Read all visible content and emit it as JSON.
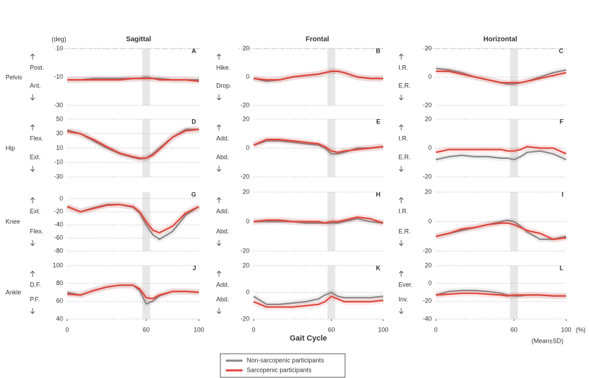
{
  "column_titles": [
    "Sagittal",
    "Frontal",
    "Horizontal"
  ],
  "row_labels": [
    "Pelvis",
    "Hip",
    "Knee",
    "Ankle"
  ],
  "unit_label": "(deg)",
  "x_label": "Gait Cycle",
  "x_unit": "(%)",
  "note": "(Mean±SD)",
  "stance_band": [
    57,
    63
  ],
  "chart_data": [
    {
      "type": "line",
      "title": "A",
      "upper_label": "Post.",
      "lower_label": "Ant.",
      "x": [
        0,
        10,
        20,
        30,
        40,
        50,
        55,
        60,
        65,
        70,
        80,
        90,
        100
      ],
      "xlim": [
        0,
        100
      ],
      "ylim": [
        -30,
        10
      ],
      "yticks": [
        10,
        -10,
        -30
      ],
      "grid": true,
      "series": [
        {
          "name": "Non-sarcopenic participants",
          "color": "#8a8a8a",
          "values": [
            -12,
            -12,
            -11,
            -11,
            -11,
            -11,
            -11,
            -10,
            -11,
            -11,
            -12,
            -12,
            -12
          ]
        },
        {
          "name": "Sarcopenic participants",
          "color": "#e0473c",
          "values": [
            -12,
            -12,
            -12,
            -12,
            -12,
            -11,
            -11,
            -11,
            -11,
            -12,
            -12,
            -12,
            -13
          ]
        }
      ]
    },
    {
      "type": "line",
      "title": "B",
      "upper_label": "Hike.",
      "lower_label": "Drop.",
      "x": [
        0,
        10,
        20,
        30,
        40,
        50,
        55,
        60,
        65,
        70,
        80,
        90,
        100
      ],
      "xlim": [
        0,
        100
      ],
      "ylim": [
        -20,
        20
      ],
      "yticks": [
        20,
        0,
        -20
      ],
      "grid": true,
      "series": [
        {
          "name": "Non-sarcopenic participants",
          "color": "#8a8a8a",
          "values": [
            -1,
            -3,
            -2,
            0,
            1,
            2,
            3,
            4,
            4,
            3,
            0,
            -1,
            -1
          ]
        },
        {
          "name": "Sarcopenic participants",
          "color": "#e0473c",
          "values": [
            -1,
            -2,
            -2,
            0,
            1,
            2,
            3,
            4,
            4,
            3,
            0,
            -1,
            -1
          ]
        }
      ]
    },
    {
      "type": "line",
      "title": "C",
      "upper_label": "I.R.",
      "lower_label": "E.R.",
      "x": [
        0,
        10,
        20,
        30,
        40,
        50,
        55,
        60,
        65,
        70,
        80,
        90,
        100
      ],
      "xlim": [
        0,
        100
      ],
      "ylim": [
        -20,
        20
      ],
      "yticks": [
        20,
        0,
        -20
      ],
      "grid": true,
      "series": [
        {
          "name": "Non-sarcopenic participants",
          "color": "#8a8a8a",
          "values": [
            6,
            5,
            3,
            0,
            -2,
            -4,
            -5,
            -5,
            -4,
            -3,
            0,
            3,
            5
          ]
        },
        {
          "name": "Sarcopenic participants",
          "color": "#e0473c",
          "values": [
            4,
            4,
            2,
            0,
            -2,
            -4,
            -4,
            -4,
            -4,
            -3,
            -1,
            1,
            3
          ]
        }
      ]
    },
    {
      "type": "line",
      "title": "D",
      "upper_label": "Flex.",
      "lower_label": "Ext.",
      "x": [
        0,
        10,
        20,
        30,
        40,
        50,
        55,
        60,
        65,
        70,
        80,
        90,
        100
      ],
      "xlim": [
        0,
        100
      ],
      "ylim": [
        -30,
        50
      ],
      "yticks": [
        50,
        30,
        10,
        -10,
        -30
      ],
      "grid": true,
      "series": [
        {
          "name": "Non-sarcopenic participants",
          "color": "#8a8a8a",
          "values": [
            35,
            30,
            20,
            10,
            2,
            -3,
            -5,
            -4,
            2,
            10,
            25,
            36,
            36
          ]
        },
        {
          "name": "Sarcopenic participants",
          "color": "#e0473c",
          "values": [
            33,
            30,
            22,
            12,
            3,
            -2,
            -4,
            -4,
            0,
            8,
            25,
            34,
            36
          ]
        }
      ]
    },
    {
      "type": "line",
      "title": "E",
      "upper_label": "Add.",
      "lower_label": "Abd.",
      "x": [
        0,
        10,
        20,
        30,
        40,
        50,
        55,
        60,
        65,
        70,
        80,
        90,
        100
      ],
      "xlim": [
        0,
        100
      ],
      "ylim": [
        -20,
        20
      ],
      "yticks": [
        20,
        0,
        -20
      ],
      "grid": true,
      "series": [
        {
          "name": "Non-sarcopenic participants",
          "color": "#8a8a8a",
          "values": [
            2,
            5,
            5,
            4,
            3,
            2,
            0,
            -4,
            -4,
            -3,
            0,
            0,
            1
          ]
        },
        {
          "name": "Sarcopenic participants",
          "color": "#e0473c",
          "values": [
            2,
            6,
            6,
            5,
            4,
            3,
            1,
            -2,
            -3,
            -2,
            -1,
            0,
            1
          ]
        }
      ]
    },
    {
      "type": "line",
      "title": "F",
      "upper_label": "I.R.",
      "lower_label": "E.R.",
      "x": [
        0,
        10,
        20,
        30,
        40,
        50,
        55,
        60,
        65,
        70,
        80,
        90,
        100
      ],
      "xlim": [
        0,
        100
      ],
      "ylim": [
        -20,
        20
      ],
      "yticks": [
        20,
        0,
        -20
      ],
      "grid": true,
      "series": [
        {
          "name": "Non-sarcopenic participants",
          "color": "#8a8a8a",
          "values": [
            -8,
            -6,
            -5,
            -6,
            -6,
            -7,
            -7,
            -8,
            -6,
            -3,
            -2,
            -4,
            -8
          ]
        },
        {
          "name": "Sarcopenic participants",
          "color": "#e0473c",
          "values": [
            -3,
            -1,
            -1,
            -1,
            -1,
            -1,
            -2,
            -2,
            -1,
            1,
            0,
            0,
            -4
          ]
        }
      ]
    },
    {
      "type": "line",
      "title": "G",
      "upper_label": "Ext.",
      "lower_label": "Flex.",
      "x": [
        0,
        10,
        20,
        30,
        40,
        50,
        55,
        60,
        65,
        70,
        80,
        90,
        100
      ],
      "xlim": [
        0,
        100
      ],
      "ylim": [
        -80,
        10
      ],
      "yticks": [
        0,
        -20,
        -40,
        -60,
        -80
      ],
      "grid": true,
      "series": [
        {
          "name": "Non-sarcopenic participants",
          "color": "#8a8a8a",
          "values": [
            -12,
            -20,
            -14,
            -9,
            -9,
            -13,
            -22,
            -40,
            -55,
            -62,
            -50,
            -25,
            -12
          ]
        },
        {
          "name": "Sarcopenic participants",
          "color": "#e0473c",
          "values": [
            -12,
            -20,
            -15,
            -10,
            -9,
            -12,
            -20,
            -35,
            -48,
            -52,
            -42,
            -22,
            -12
          ]
        }
      ]
    },
    {
      "type": "line",
      "title": "H",
      "upper_label": "Add.",
      "lower_label": "Abd.",
      "x": [
        0,
        10,
        20,
        30,
        40,
        50,
        55,
        60,
        65,
        70,
        80,
        90,
        100
      ],
      "xlim": [
        0,
        100
      ],
      "ylim": [
        -20,
        20
      ],
      "yticks": [
        20,
        0,
        -20
      ],
      "grid": true,
      "series": [
        {
          "name": "Non-sarcopenic participants",
          "color": "#8a8a8a",
          "values": [
            0,
            0,
            0,
            0,
            -1,
            -1,
            -1,
            -1,
            -1,
            0,
            2,
            0,
            -1
          ]
        },
        {
          "name": "Sarcopenic participants",
          "color": "#e0473c",
          "values": [
            0,
            1,
            1,
            0,
            0,
            0,
            -1,
            0,
            0,
            1,
            3,
            2,
            -1
          ]
        }
      ]
    },
    {
      "type": "line",
      "title": "I",
      "upper_label": "I.R.",
      "lower_label": "E.R.",
      "x": [
        0,
        10,
        20,
        30,
        40,
        50,
        55,
        60,
        65,
        70,
        80,
        90,
        100
      ],
      "xlim": [
        0,
        100
      ],
      "ylim": [
        -20,
        20
      ],
      "yticks": [
        20,
        0,
        -20
      ],
      "grid": true,
      "series": [
        {
          "name": "Non-sarcopenic participants",
          "color": "#8a8a8a",
          "values": [
            -10,
            -8,
            -6,
            -4,
            -2,
            0,
            1,
            0,
            -3,
            -7,
            -12,
            -12,
            -10
          ]
        },
        {
          "name": "Sarcopenic participants",
          "color": "#e0473c",
          "values": [
            -10,
            -8,
            -5,
            -4,
            -2,
            -1,
            -1,
            -2,
            -4,
            -6,
            -8,
            -12,
            -11
          ]
        }
      ]
    },
    {
      "type": "line",
      "title": "J",
      "upper_label": "D.F.",
      "lower_label": "P.F.",
      "x": [
        0,
        10,
        20,
        30,
        40,
        50,
        55,
        60,
        65,
        70,
        80,
        90,
        100
      ],
      "xlim": [
        0,
        100
      ],
      "ylim": [
        40,
        100
      ],
      "yticks": [
        100,
        80,
        60,
        40
      ],
      "xticks": [
        0,
        60,
        100
      ],
      "grid": true,
      "series": [
        {
          "name": "Non-sarcopenic participants",
          "color": "#8a8a8a",
          "values": [
            70,
            67,
            72,
            76,
            78,
            78,
            72,
            57,
            60,
            66,
            71,
            71,
            70
          ]
        },
        {
          "name": "Sarcopenic participants",
          "color": "#e0473c",
          "values": [
            68,
            67,
            72,
            76,
            78,
            78,
            74,
            64,
            63,
            67,
            71,
            71,
            70
          ]
        }
      ]
    },
    {
      "type": "line",
      "title": "K",
      "upper_label": "Add.",
      "lower_label": "Abd.",
      "x": [
        0,
        10,
        20,
        30,
        40,
        50,
        55,
        60,
        65,
        70,
        80,
        90,
        100
      ],
      "xlim": [
        0,
        100
      ],
      "ylim": [
        -20,
        20
      ],
      "yticks": [
        20,
        0,
        -20
      ],
      "xticks": [
        0,
        60,
        100
      ],
      "grid": true,
      "series": [
        {
          "name": "Non-sarcopenic participants",
          "color": "#8a8a8a",
          "values": [
            -3,
            -9,
            -9,
            -8,
            -7,
            -5,
            -2,
            0,
            -3,
            -4,
            -4,
            -4,
            -3
          ]
        },
        {
          "name": "Sarcopenic participants",
          "color": "#e0473c",
          "values": [
            -7,
            -11,
            -11,
            -11,
            -10,
            -9,
            -7,
            -3,
            -5,
            -7,
            -7,
            -7,
            -6
          ]
        }
      ]
    },
    {
      "type": "line",
      "title": "L",
      "upper_label": "Ever.",
      "lower_label": "Inv.",
      "x": [
        0,
        10,
        20,
        30,
        40,
        50,
        55,
        60,
        65,
        70,
        80,
        90,
        100
      ],
      "xlim": [
        0,
        100
      ],
      "ylim": [
        -40,
        20
      ],
      "yticks": [
        20,
        0,
        -20,
        -40
      ],
      "xticks": [
        0,
        60,
        100
      ],
      "grid": true,
      "series": [
        {
          "name": "Non-sarcopenic participants",
          "color": "#8a8a8a",
          "values": [
            -13,
            -9,
            -8,
            -8,
            -9,
            -11,
            -13,
            -14,
            -14,
            -13,
            -13,
            -14,
            -14
          ]
        },
        {
          "name": "Sarcopenic participants",
          "color": "#e0473c",
          "values": [
            -13,
            -12,
            -11,
            -11,
            -12,
            -13,
            -14,
            -13,
            -13,
            -13,
            -13,
            -14,
            -14
          ]
        }
      ]
    }
  ]
}
